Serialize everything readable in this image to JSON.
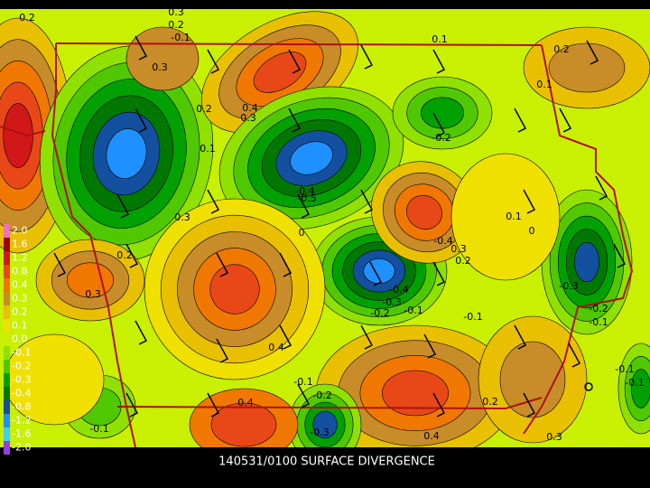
{
  "footer": "140531/0100 SURFACE DIVERGENCE",
  "colorbar": {
    "labels": [
      "2.0",
      "1.6",
      "1.2",
      "0.8",
      "0.4",
      "0.3",
      "0.2",
      "0.1",
      "0.0",
      "-0.1",
      "-0.2",
      "-0.3",
      "-0.4",
      "-0.8",
      "-1.2",
      "-1.6",
      "-2.0"
    ],
    "colors": [
      "#f070c0",
      "#a00000",
      "#d01818",
      "#e84818",
      "#f07800",
      "#c88c28",
      "#e8c000",
      "#f0e000",
      "#c8f000",
      "#90e000",
      "#50c800",
      "#00a000",
      "#007800",
      "#1450a0",
      "#1e90ff",
      "#40d0f0",
      "#9040e0"
    ]
  },
  "contour_labels": [
    "0.2",
    "0.3",
    "0.2",
    "-0.1",
    "0.3",
    "0.1",
    "0.2",
    "0.1",
    "0.4",
    "0.3",
    "0.2",
    "-0.2",
    "0.1",
    "-0.4",
    "-0.5",
    "0.3",
    "0.1",
    "0",
    "0",
    "-0.4",
    "0.3",
    "0.2",
    "0.2",
    "0.3",
    "-0.4",
    "-0.3",
    "-0.2",
    "-0.1",
    "-0.1",
    "-0.3",
    "-0.2",
    "-0.1",
    "0.4",
    "-0.1",
    "-0.1",
    "-0.1",
    "-0.2",
    "0.4",
    "0.2",
    "-0.1",
    "-0.3",
    "0.4",
    "0.3"
  ]
}
